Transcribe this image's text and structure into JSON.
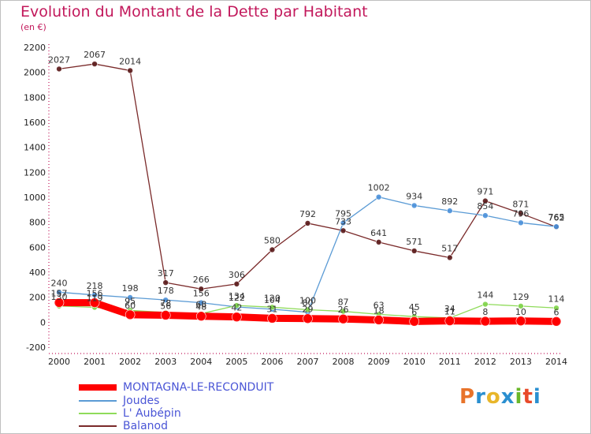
{
  "title": "Evolution du Montant de la Dette par Habitant",
  "unit": "(en €)",
  "brand": {
    "text": "Proxiti",
    "colors": [
      "#e8732a",
      "#2a8fd0",
      "#e8b62a",
      "#2a8fd0",
      "#6ab82a",
      "#e84a2a",
      "#2a8fd0"
    ]
  },
  "chart_data": {
    "type": "line",
    "x": [
      2000,
      2001,
      2002,
      2003,
      2004,
      2005,
      2006,
      2007,
      2008,
      2009,
      2010,
      2011,
      2012,
      2013,
      2014
    ],
    "ylim": [
      -200,
      2200
    ],
    "yticks": [
      -200,
      0,
      200,
      400,
      600,
      800,
      1000,
      1200,
      1400,
      1600,
      1800,
      2000,
      2200
    ],
    "grid": false,
    "legend": "bottom",
    "series": [
      {
        "name": "MONTAGNA-LE-RECONDUIT",
        "color": "#ff0000",
        "values": [
          157,
          156,
          60,
          56,
          48,
          42,
          31,
          29,
          26,
          18,
          6,
          11,
          8,
          10,
          6
        ],
        "labels": [
          "157",
          "156",
          "60",
          "56",
          "48",
          "42",
          "31",
          "29",
          "26",
          "18",
          "6",
          "11",
          "8",
          "10",
          "6"
        ]
      },
      {
        "name": "Joudes",
        "color": "#5b9bd5",
        "values": [
          240,
          218,
          198,
          178,
          156,
          122,
          104,
          80,
          795,
          1002,
          934,
          892,
          854,
          796,
          765
        ],
        "labels": [
          "240",
          "218",
          "198",
          "178",
          "156",
          "122",
          "104",
          "80",
          "795",
          "1002",
          "934",
          "892",
          "854",
          "796",
          "765"
        ]
      },
      {
        "name": "L' Aubépin",
        "color": "#8fdb5a",
        "values": [
          130,
          119,
          95,
          78,
          68,
          134,
          120,
          100,
          87,
          63,
          45,
          34,
          144,
          129,
          114
        ],
        "labels": [
          "130",
          "119",
          "95",
          "78",
          "68",
          "134",
          "120",
          "100",
          "87",
          "63",
          "45",
          "34",
          "144",
          "129",
          "114"
        ]
      },
      {
        "name": "Balanod",
        "color": "#7a2a2a",
        "values": [
          2027,
          2067,
          2014,
          317,
          266,
          306,
          580,
          792,
          733,
          641,
          571,
          517,
          971,
          871,
          762
        ],
        "labels": [
          "2027",
          "2067",
          "2014",
          "317",
          "266",
          "306",
          "580",
          "792",
          "733",
          "641",
          "571",
          "517",
          "971",
          "871",
          "762"
        ]
      }
    ]
  }
}
